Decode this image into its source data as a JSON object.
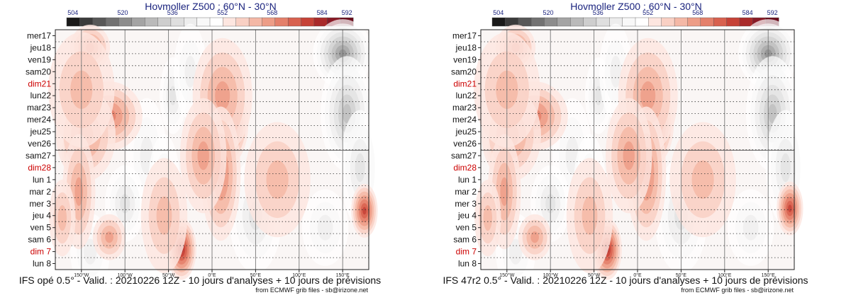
{
  "chart_data": [
    {
      "type": "heatmap",
      "title": "Hovmoller Z500 : 60°N - 30°N",
      "caption": "IFS opé 0.5° - Valid. : 20210226 12Z - 10 jours d'analyses + 10 jours de prévisions",
      "credit": "from ECMWF grib files - sb@irizone.net",
      "colorbar": {
        "labels": [
          "504",
          "520",
          "536",
          "552",
          "568",
          "584",
          "592"
        ],
        "label_values": [
          504,
          520,
          536,
          552,
          568,
          584,
          592
        ],
        "range": [
          502,
          594
        ],
        "colors": [
          "#1a1a1a",
          "#3b3b3b",
          "#585858",
          "#727272",
          "#8c8c8c",
          "#a4a4a4",
          "#bababa",
          "#cecece",
          "#dfdfdf",
          "#ededed",
          "#f8f8f8",
          "#ffffff",
          "#fde6e0",
          "#f9d0c4",
          "#f4b8a6",
          "#ed9d87",
          "#e4806b",
          "#d8614f",
          "#c64237",
          "#a92a2a",
          "#891a26",
          "#6a0c1c"
        ]
      },
      "x_axis": {
        "range": [
          -180,
          180
        ],
        "ticks": [
          -150,
          -100,
          -50,
          0,
          50,
          100,
          150
        ],
        "tick_labels": [
          "150°W",
          "100°W",
          "50°W",
          "0°E",
          "50°E",
          "100°E",
          "150°E"
        ]
      },
      "y_axis": {
        "labels": [
          "mer17",
          "jeu18",
          "ven19",
          "sam20",
          "dim21",
          "lun22",
          "mar23",
          "mer24",
          "jeu25",
          "ven26",
          "sam27",
          "dim28",
          "lun 1",
          "mar 2",
          "mer 3",
          "jeu 4",
          "ven 5",
          "sam 6",
          "dim 7",
          "lun 8"
        ],
        "sundays": [
          "dim21",
          "dim28",
          "dim 7"
        ],
        "analysis_end_label": "sam27"
      },
      "anomalies": [
        {
          "lon": -140,
          "day": 1.0,
          "amp": 20,
          "lon_width": 12,
          "day_width": 1.2
        },
        {
          "lon": -118,
          "day": 6.7,
          "amp": 20,
          "lon_width": 20,
          "day_width": 1.8
        },
        {
          "lon": -150,
          "day": 9.6,
          "amp": 36,
          "lon_width": 12,
          "day_width": 1.3
        },
        {
          "lon": -145,
          "day": 8.3,
          "amp": 16,
          "lon_width": 18,
          "day_width": 2.4
        },
        {
          "lon": -153,
          "day": 13,
          "amp": 14,
          "lon_width": 10,
          "day_width": 3
        },
        {
          "lon": 15,
          "day": 7.4,
          "amp": 34,
          "lon_width": 14,
          "day_width": 2.2
        },
        {
          "lon": 12,
          "day": 5.0,
          "amp": 16,
          "lon_width": 18,
          "day_width": 3
        },
        {
          "lon": 10,
          "day": 11.5,
          "amp": 18,
          "lon_width": 12,
          "day_width": 3.5
        },
        {
          "lon": -10,
          "day": 10,
          "amp": 14,
          "lon_width": 14,
          "day_width": 3
        },
        {
          "lon": -35,
          "day": 17.8,
          "amp": 30,
          "lon_width": 9,
          "day_width": 1.6
        },
        {
          "lon": -55,
          "day": 15,
          "amp": 12,
          "lon_width": 14,
          "day_width": 3
        },
        {
          "lon": -118,
          "day": 16.8,
          "amp": 16,
          "lon_width": 10,
          "day_width": 1.2
        },
        {
          "lon": 175,
          "day": 14.6,
          "amp": 26,
          "lon_width": 8,
          "day_width": 1.4
        },
        {
          "lon": -172,
          "day": 15.2,
          "amp": 12,
          "lon_width": 8,
          "day_width": 2
        },
        {
          "lon": -150,
          "day": 4.5,
          "amp": 12,
          "lon_width": 20,
          "day_width": 3
        },
        {
          "lon": 75,
          "day": 12,
          "amp": 10,
          "lon_width": 20,
          "day_width": 3
        },
        {
          "lon": 150,
          "day": 1.5,
          "amp": -30,
          "lon_width": 18,
          "day_width": 1.8
        },
        {
          "lon": 155,
          "day": 6.5,
          "amp": -22,
          "lon_width": 16,
          "day_width": 3
        },
        {
          "lon": 170,
          "day": 11,
          "amp": -16,
          "lon_width": 12,
          "day_width": 3
        },
        {
          "lon": -45,
          "day": 5.0,
          "amp": -16,
          "lon_width": 8,
          "day_width": 2
        },
        {
          "lon": -25,
          "day": 3.0,
          "amp": -12,
          "lon_width": 10,
          "day_width": 2.5
        },
        {
          "lon": -75,
          "day": 10,
          "amp": -12,
          "lon_width": 12,
          "day_width": 3
        },
        {
          "lon": -100,
          "day": 14,
          "amp": -14,
          "lon_width": 12,
          "day_width": 2
        },
        {
          "lon": -55,
          "day": 13,
          "amp": -12,
          "lon_width": 10,
          "day_width": 3
        },
        {
          "lon": 50,
          "day": 15,
          "amp": -14,
          "lon_width": 16,
          "day_width": 3
        },
        {
          "lon": 130,
          "day": 16,
          "amp": -12,
          "lon_width": 14,
          "day_width": 2
        },
        {
          "lon": -140,
          "day": 18,
          "amp": -10,
          "lon_width": 12,
          "day_width": 2
        }
      ]
    },
    {
      "type": "heatmap",
      "title": "Hovmoller Z500 : 60°N - 30°N",
      "caption": "IFS 47r2 0.5° - Valid. : 20210226 12Z - 10 jours d'analyses + 10 jours de prévisions",
      "credit": "from ECMWF grib files - sb@irizone.net",
      "colorbar": {
        "labels": [
          "504",
          "520",
          "536",
          "552",
          "568",
          "584",
          "592"
        ],
        "label_values": [
          504,
          520,
          536,
          552,
          568,
          584,
          592
        ],
        "range": [
          502,
          594
        ],
        "colors": [
          "#1a1a1a",
          "#3b3b3b",
          "#585858",
          "#727272",
          "#8c8c8c",
          "#a4a4a4",
          "#bababa",
          "#cecece",
          "#dfdfdf",
          "#ededed",
          "#f8f8f8",
          "#ffffff",
          "#fde6e0",
          "#f9d0c4",
          "#f4b8a6",
          "#ed9d87",
          "#e4806b",
          "#d8614f",
          "#c64237",
          "#a92a2a",
          "#891a26",
          "#6a0c1c"
        ]
      },
      "x_axis": {
        "range": [
          -180,
          180
        ],
        "ticks": [
          -150,
          -100,
          -50,
          0,
          50,
          100,
          150
        ],
        "tick_labels": [
          "150°W",
          "100°W",
          "50°W",
          "0°E",
          "50°E",
          "100°E",
          "150°E"
        ]
      },
      "y_axis": {
        "labels": [
          "mer17",
          "jeu18",
          "ven19",
          "sam20",
          "dim21",
          "lun22",
          "mar23",
          "mer24",
          "jeu25",
          "ven26",
          "sam27",
          "dim28",
          "lun 1",
          "mar 2",
          "mer 3",
          "jeu 4",
          "ven 5",
          "sam 6",
          "dim 7",
          "lun 8"
        ],
        "sundays": [
          "dim21",
          "dim28",
          "dim 7"
        ],
        "analysis_end_label": "sam27"
      },
      "anomalies": [
        {
          "lon": -140,
          "day": 1.0,
          "amp": 20,
          "lon_width": 12,
          "day_width": 1.2
        },
        {
          "lon": -118,
          "day": 6.7,
          "amp": 20,
          "lon_width": 20,
          "day_width": 1.8
        },
        {
          "lon": -150,
          "day": 9.6,
          "amp": 36,
          "lon_width": 12,
          "day_width": 1.3
        },
        {
          "lon": -145,
          "day": 8.3,
          "amp": 16,
          "lon_width": 18,
          "day_width": 2.4
        },
        {
          "lon": -153,
          "day": 13,
          "amp": 14,
          "lon_width": 10,
          "day_width": 3
        },
        {
          "lon": 15,
          "day": 7.4,
          "amp": 34,
          "lon_width": 14,
          "day_width": 2.2
        },
        {
          "lon": 12,
          "day": 5.0,
          "amp": 16,
          "lon_width": 18,
          "day_width": 3
        },
        {
          "lon": 10,
          "day": 11.5,
          "amp": 18,
          "lon_width": 12,
          "day_width": 3.5
        },
        {
          "lon": -10,
          "day": 10,
          "amp": 14,
          "lon_width": 14,
          "day_width": 3
        },
        {
          "lon": -35,
          "day": 17.8,
          "amp": 32,
          "lon_width": 9,
          "day_width": 1.6
        },
        {
          "lon": -55,
          "day": 15,
          "amp": 12,
          "lon_width": 14,
          "day_width": 3
        },
        {
          "lon": -118,
          "day": 16.8,
          "amp": 16,
          "lon_width": 10,
          "day_width": 1.2
        },
        {
          "lon": 175,
          "day": 14.4,
          "amp": 28,
          "lon_width": 8,
          "day_width": 1.4
        },
        {
          "lon": -172,
          "day": 15.2,
          "amp": 12,
          "lon_width": 8,
          "day_width": 2
        },
        {
          "lon": -150,
          "day": 4.5,
          "amp": 12,
          "lon_width": 20,
          "day_width": 3
        },
        {
          "lon": 75,
          "day": 12,
          "amp": 10,
          "lon_width": 20,
          "day_width": 3
        },
        {
          "lon": 150,
          "day": 1.5,
          "amp": -30,
          "lon_width": 18,
          "day_width": 1.8
        },
        {
          "lon": 155,
          "day": 6.5,
          "amp": -22,
          "lon_width": 16,
          "day_width": 3
        },
        {
          "lon": 170,
          "day": 11,
          "amp": -16,
          "lon_width": 12,
          "day_width": 3
        },
        {
          "lon": -45,
          "day": 5.0,
          "amp": -16,
          "lon_width": 8,
          "day_width": 2
        },
        {
          "lon": -25,
          "day": 3.0,
          "amp": -12,
          "lon_width": 10,
          "day_width": 2.5
        },
        {
          "lon": -75,
          "day": 10,
          "amp": -12,
          "lon_width": 12,
          "day_width": 3
        },
        {
          "lon": -100,
          "day": 14,
          "amp": -14,
          "lon_width": 12,
          "day_width": 2
        },
        {
          "lon": -55,
          "day": 13,
          "amp": -12,
          "lon_width": 10,
          "day_width": 3
        },
        {
          "lon": 50,
          "day": 15,
          "amp": -14,
          "lon_width": 16,
          "day_width": 3
        },
        {
          "lon": 130,
          "day": 16,
          "amp": -12,
          "lon_width": 14,
          "day_width": 2
        },
        {
          "lon": -140,
          "day": 18,
          "amp": -10,
          "lon_width": 12,
          "day_width": 2
        }
      ]
    }
  ]
}
